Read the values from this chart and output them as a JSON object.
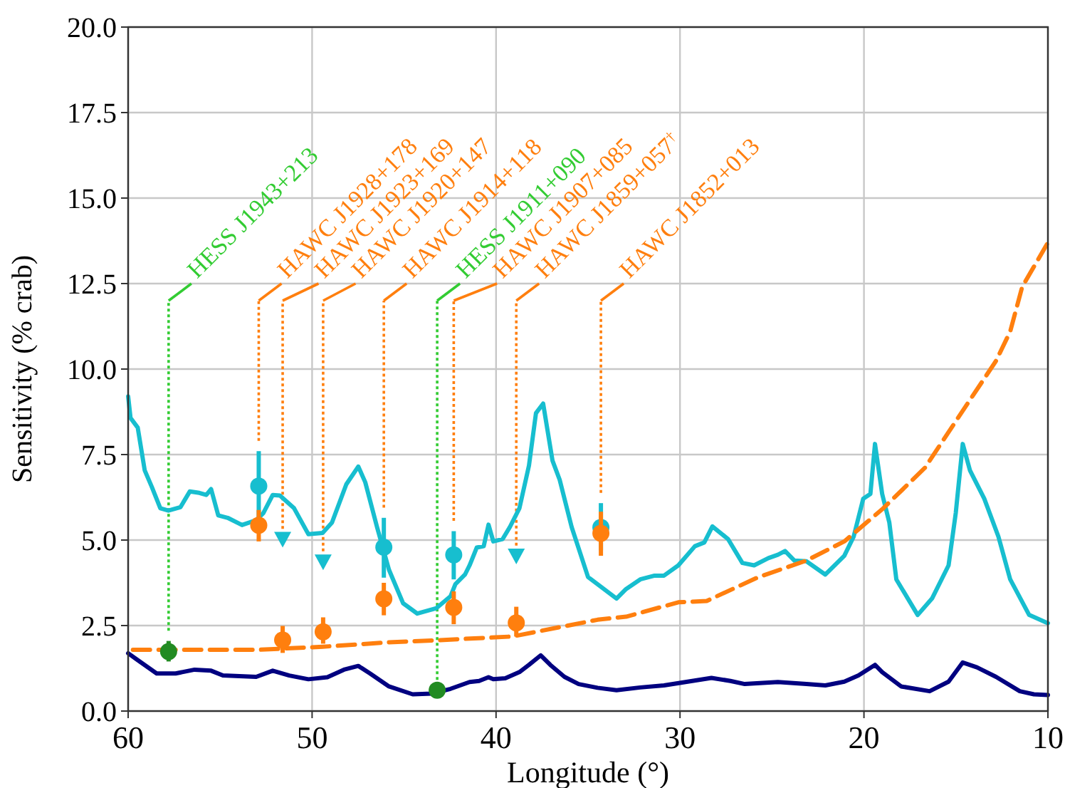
{
  "chart_data": {
    "type": "line",
    "xlabel": "Longitude (°)",
    "ylabel": "Sensitivity (% crab)",
    "xlim": [
      60,
      10
    ],
    "ylim": [
      0,
      20
    ],
    "xticks": [
      60,
      50,
      40,
      30,
      20,
      10
    ],
    "yticks": [
      {
        "value": 0,
        "label": "0.0"
      },
      {
        "value": 2.5,
        "label": "2.5"
      },
      {
        "value": 5,
        "label": "5.0"
      },
      {
        "value": 7.5,
        "label": "7.5"
      },
      {
        "value": 10,
        "label": "10.0"
      },
      {
        "value": 12.5,
        "label": "12.5"
      },
      {
        "value": 15,
        "label": "15.0"
      },
      {
        "value": 17.5,
        "label": "17.5"
      },
      {
        "value": 20,
        "label": "20.0"
      }
    ],
    "grid": true,
    "series": [
      {
        "color": "#17becf",
        "line_style": "solid",
        "marker": "none",
        "x": [
          60.0,
          59.87,
          59.48,
          59.1,
          58.71,
          58.25,
          57.81,
          57.16,
          56.65,
          56.13,
          55.75,
          55.49,
          55.1,
          54.59,
          53.81,
          53.04,
          52.65,
          52.14,
          51.75,
          50.98,
          50.2,
          49.43,
          48.92,
          48.14,
          47.49,
          47.11,
          46.47,
          45.82,
          45.05,
          44.28,
          43.24,
          42.47,
          42.21,
          41.69,
          41.44,
          41.05,
          40.67,
          40.41,
          40.15,
          39.64,
          39.25,
          38.73,
          38.21,
          37.83,
          37.44,
          36.93,
          36.54,
          35.89,
          35.0,
          33.45,
          32.93,
          32.16,
          31.38,
          30.87,
          30.09,
          29.19,
          28.68,
          28.24,
          27.39,
          26.61,
          25.97,
          25.2,
          24.68,
          24.29,
          23.78,
          23.13,
          22.1,
          21.07,
          20.56,
          20.04,
          19.65,
          19.4,
          19.01,
          18.62,
          18.24,
          17.08,
          16.3,
          15.4,
          15.01,
          14.63,
          14.24,
          13.46,
          12.69,
          12.05,
          11.02,
          10.0
        ],
        "values": [
          9.2,
          8.57,
          8.29,
          7.04,
          6.55,
          5.93,
          5.86,
          5.96,
          6.42,
          6.38,
          6.32,
          6.49,
          5.72,
          5.65,
          5.44,
          5.58,
          5.79,
          6.32,
          6.3,
          5.93,
          5.17,
          5.21,
          5.51,
          6.63,
          7.15,
          6.69,
          5.38,
          4.13,
          3.15,
          2.85,
          3.01,
          3.36,
          3.71,
          3.99,
          4.26,
          4.78,
          4.82,
          5.45,
          4.96,
          5.03,
          5.38,
          5.93,
          7.18,
          8.71,
          8.99,
          7.32,
          6.76,
          5.38,
          3.92,
          3.29,
          3.57,
          3.85,
          3.96,
          3.96,
          4.26,
          4.82,
          4.93,
          5.4,
          5.03,
          4.33,
          4.26,
          4.47,
          4.57,
          4.68,
          4.4,
          4.38,
          3.99,
          4.54,
          5.1,
          6.21,
          6.35,
          7.81,
          6.35,
          5.51,
          3.85,
          2.81,
          3.29,
          4.26,
          5.79,
          7.81,
          7.04,
          6.21,
          5.1,
          3.85,
          2.81,
          2.57
        ]
      },
      {
        "color": "#000080",
        "line_style": "solid",
        "marker": "none",
        "x": [
          60.0,
          59.48,
          58.45,
          57.42,
          56.39,
          55.49,
          54.85,
          53.04,
          52.14,
          51.24,
          50.2,
          49.17,
          48.27,
          47.49,
          46.85,
          45.82,
          44.53,
          43.5,
          42.47,
          41.44,
          40.92,
          40.41,
          40.15,
          39.5,
          38.73,
          38.21,
          37.57,
          37.05,
          36.28,
          35.51,
          34.48,
          33.45,
          32.16,
          30.87,
          29.58,
          28.29,
          27.26,
          26.48,
          24.68,
          23.13,
          22.1,
          21.07,
          20.3,
          19.4,
          19.01,
          17.98,
          16.43,
          15.4,
          14.63,
          13.86,
          12.82,
          11.53,
          10.76,
          10.0
        ],
        "values": [
          1.69,
          1.49,
          1.1,
          1.1,
          1.21,
          1.18,
          1.04,
          1.0,
          1.18,
          1.04,
          0.93,
          0.99,
          1.21,
          1.32,
          1.1,
          0.72,
          0.49,
          0.51,
          0.65,
          0.85,
          0.88,
          0.99,
          0.93,
          0.96,
          1.14,
          1.35,
          1.63,
          1.35,
          1.0,
          0.79,
          0.68,
          0.61,
          0.69,
          0.75,
          0.86,
          0.97,
          0.88,
          0.79,
          0.85,
          0.79,
          0.75,
          0.86,
          1.04,
          1.35,
          1.14,
          0.72,
          0.58,
          0.86,
          1.42,
          1.28,
          1.0,
          0.58,
          0.49,
          0.47
        ]
      },
      {
        "color": "#ff7f0e",
        "line_style": "dashed",
        "marker": "none",
        "x": [
          59.74,
          53.04,
          49.43,
          45.82,
          43.24,
          39.12,
          34.48,
          32.93,
          30.09,
          28.55,
          25.72,
          23.13,
          21.07,
          19.01,
          16.69,
          14.89,
          12.82,
          12.05,
          11.4,
          10.0
        ],
        "values": [
          1.79,
          1.79,
          1.88,
          2.01,
          2.07,
          2.18,
          2.67,
          2.76,
          3.18,
          3.22,
          3.92,
          4.4,
          4.96,
          5.9,
          7.11,
          8.57,
          10.24,
          11.1,
          12.4,
          13.7
        ]
      },
      {
        "type": "scatter",
        "color": "#17becf",
        "marker": "circle",
        "x": [
          52.9,
          46.1,
          42.3,
          34.3
        ],
        "values": [
          6.58,
          4.79,
          4.57,
          5.37
        ],
        "errors": [
          [
            5.6,
            7.6
          ],
          [
            3.9,
            5.65
          ],
          [
            3.85,
            5.26
          ],
          [
            4.7,
            6.08
          ]
        ]
      },
      {
        "type": "scatter",
        "color": "#ff7f0e",
        "marker": "circle",
        "x": [
          52.9,
          46.1,
          42.3,
          34.3
        ],
        "values": [
          5.43,
          3.28,
          3.03,
          5.2
        ],
        "errors": [
          [
            4.96,
            5.88
          ],
          [
            2.8,
            3.75
          ],
          [
            2.54,
            3.5
          ],
          [
            4.54,
            5.83
          ]
        ]
      },
      {
        "type": "scatter",
        "color": "#ff7f0e",
        "marker": "circle",
        "x": [
          51.6,
          49.4,
          38.9
        ],
        "values": [
          2.08,
          2.32,
          2.58
        ],
        "errors": [
          [
            1.7,
            2.49
          ],
          [
            1.97,
            2.74
          ],
          [
            2.18,
            3.05
          ]
        ]
      },
      {
        "type": "scatter",
        "color": "#17becf",
        "marker": "triangle",
        "x": [
          51.6,
          49.4,
          38.9
        ],
        "values": [
          5.03,
          4.37,
          4.54
        ]
      },
      {
        "type": "scatter",
        "color": "#228b22",
        "marker": "circle",
        "x": [
          57.8,
          43.2
        ],
        "values": [
          1.74,
          0.61
        ],
        "errors": [
          [
            1.45,
            2.05
          ],
          null
        ]
      }
    ],
    "ref_lines": [
      {
        "axis": "x",
        "value": 57.8,
        "label": "HESS J1943+213",
        "color": "#33cc33",
        "line_style": "dotted"
      },
      {
        "axis": "x",
        "value": 52.9,
        "label": "HAWC J1928+178",
        "color": "#ff7f0e",
        "line_style": "dotted"
      },
      {
        "axis": "x",
        "value": 51.6,
        "label": "HAWC J1923+169",
        "color": "#ff7f0e",
        "line_style": "dotted"
      },
      {
        "axis": "x",
        "value": 49.4,
        "label": "HAWC J1920+147",
        "color": "#ff7f0e",
        "line_style": "dotted"
      },
      {
        "axis": "x",
        "value": 46.1,
        "label": "HAWC J1914+118",
        "color": "#ff7f0e",
        "line_style": "dotted"
      },
      {
        "axis": "x",
        "value": 43.2,
        "label": "HESS J1911+090",
        "color": "#33cc33",
        "line_style": "dotted"
      },
      {
        "axis": "x",
        "value": 42.3,
        "label": "HAWC J1907+085",
        "color": "#ff7f0e",
        "line_style": "dotted"
      },
      {
        "axis": "x",
        "value": 38.9,
        "label": "HAWC J1859+057$^{†}$",
        "color": "#ff7f0e",
        "line_style": "dotted"
      },
      {
        "axis": "x",
        "value": 34.3,
        "label": "HAWC J1852+013",
        "color": "#ff7f0e",
        "line_style": "dotted"
      }
    ]
  }
}
